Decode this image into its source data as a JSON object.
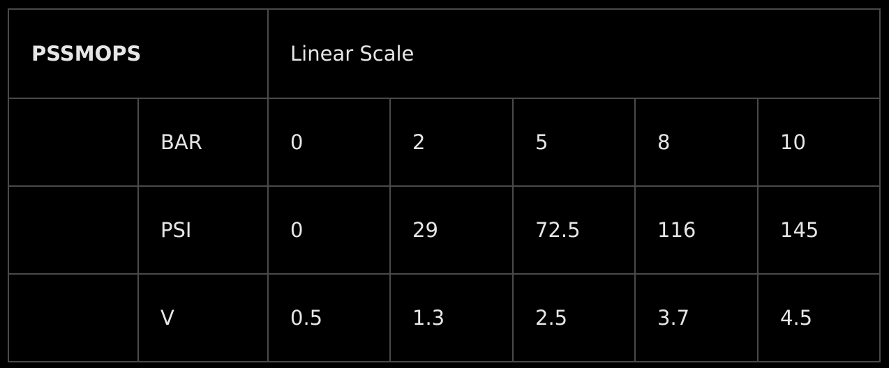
{
  "table": {
    "product": "PSSMOPS",
    "scale_label": "Linear Scale",
    "rows": [
      {
        "unit": "BAR",
        "values": [
          "0",
          "2",
          "5",
          "8",
          "10"
        ]
      },
      {
        "unit": "PSI",
        "values": [
          "0",
          "29",
          "72.5",
          "116",
          "145"
        ]
      },
      {
        "unit": "V",
        "values": [
          "0.5",
          "1.3",
          "2.5",
          "3.7",
          "4.5"
        ]
      }
    ]
  },
  "colors": {
    "background": "#000000",
    "text": "#e6e6e6",
    "border": "#4a4a4a"
  }
}
